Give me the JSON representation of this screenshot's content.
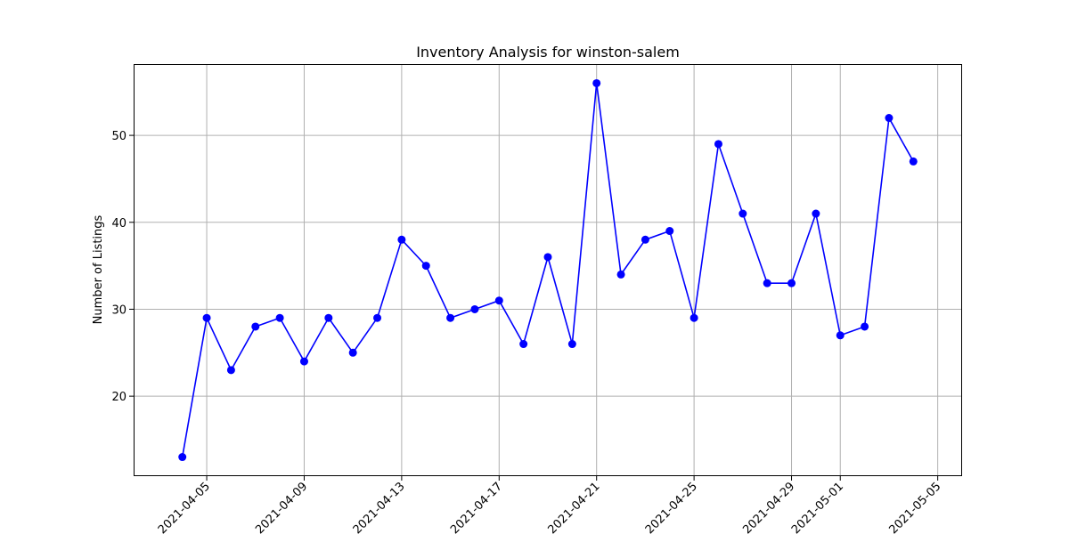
{
  "chart_data": {
    "type": "line",
    "title": "Inventory Analysis for winston-salem",
    "xlabel": "",
    "ylabel": "Number of Listings",
    "xlim": [
      "2021-04-02",
      "2021-05-06"
    ],
    "ylim": [
      10.8,
      58.2
    ],
    "x_ticks": [
      "2021-04-05",
      "2021-04-09",
      "2021-04-13",
      "2021-04-17",
      "2021-04-21",
      "2021-04-25",
      "2021-04-29",
      "2021-05-01",
      "2021-05-05"
    ],
    "y_ticks": [
      20,
      30,
      40,
      50
    ],
    "grid": true,
    "line_color": "#0000ff",
    "marker_color": "#0000ff",
    "series": [
      {
        "x": [
          "2021-04-04",
          "2021-04-05",
          "2021-04-06",
          "2021-04-07",
          "2021-04-08",
          "2021-04-09",
          "2021-04-10",
          "2021-04-11",
          "2021-04-12",
          "2021-04-13",
          "2021-04-14",
          "2021-04-15",
          "2021-04-16",
          "2021-04-17",
          "2021-04-18",
          "2021-04-19",
          "2021-04-20",
          "2021-04-21",
          "2021-04-22",
          "2021-04-23",
          "2021-04-24",
          "2021-04-25",
          "2021-04-26",
          "2021-04-27",
          "2021-04-28",
          "2021-04-29",
          "2021-04-30",
          "2021-05-01",
          "2021-05-02",
          "2021-05-03",
          "2021-05-04"
        ],
        "values": [
          13,
          29,
          23,
          28,
          29,
          24,
          29,
          25,
          29,
          38,
          35,
          29,
          30,
          31,
          26,
          36,
          26,
          56,
          34,
          38,
          39,
          29,
          49,
          41,
          33,
          33,
          41,
          27,
          28,
          52,
          47
        ]
      }
    ]
  }
}
